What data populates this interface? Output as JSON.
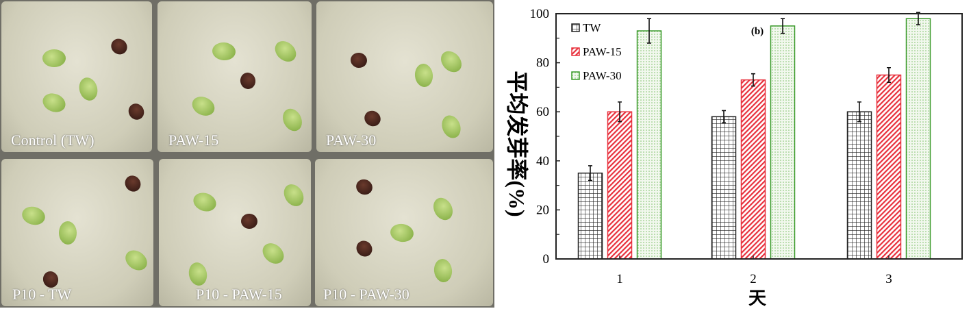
{
  "photos": {
    "panels": [
      "Control (TW)",
      "PAW-15",
      "PAW-30",
      "P10 - TW",
      "P10 - PAW-15",
      "P10 - PAW-30"
    ]
  },
  "chart_data": {
    "type": "bar",
    "panel_label": "(b)",
    "xlabel": "天",
    "ylabel": "平均发芽率(%)",
    "categories": [
      "1",
      "2",
      "3"
    ],
    "ylim": [
      0,
      100
    ],
    "yticks": [
      0,
      20,
      40,
      60,
      80,
      100
    ],
    "legend_position": "top-left",
    "series": [
      {
        "name": "TW",
        "values": [
          35,
          58,
          60
        ],
        "errors": [
          3,
          2.5,
          4
        ],
        "color": "#222222",
        "pattern": "grid"
      },
      {
        "name": "PAW-15",
        "values": [
          60,
          73,
          75
        ],
        "errors": [
          4,
          2.5,
          3
        ],
        "color": "#e8303c",
        "pattern": "diagonal"
      },
      {
        "name": "PAW-30",
        "values": [
          93,
          95,
          98
        ],
        "errors": [
          5,
          3,
          2.5
        ],
        "color": "#3a9a2a",
        "pattern": "dots"
      }
    ]
  }
}
